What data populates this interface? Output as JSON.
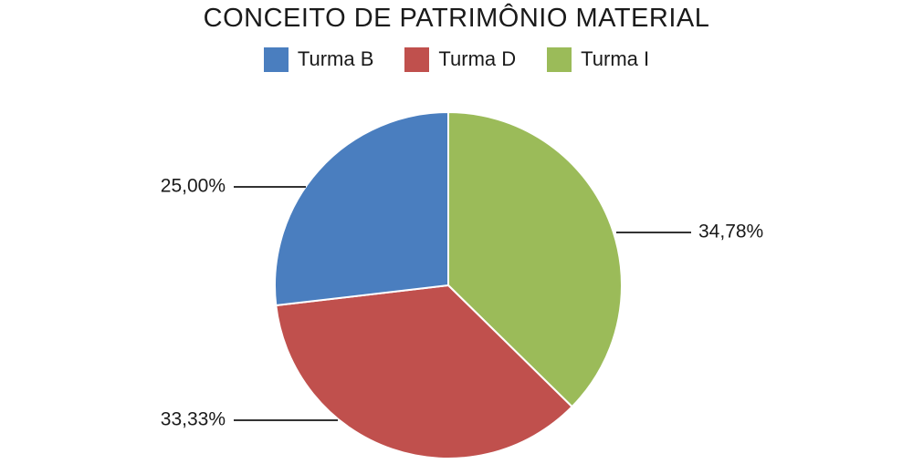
{
  "chart_data": {
    "type": "pie",
    "title": "CONCEITO DE PATRIMÔNIO MATERIAL",
    "legend_position": "top",
    "series": [
      {
        "name": "Turma B",
        "value": 25.0,
        "label": "25,00%",
        "color": "#4a7ebf"
      },
      {
        "name": "Turma D",
        "value": 33.33,
        "label": "33,33%",
        "color": "#c0504d"
      },
      {
        "name": "Turma I",
        "value": 34.78,
        "label": "34,78%",
        "color": "#9bbb59"
      }
    ]
  }
}
